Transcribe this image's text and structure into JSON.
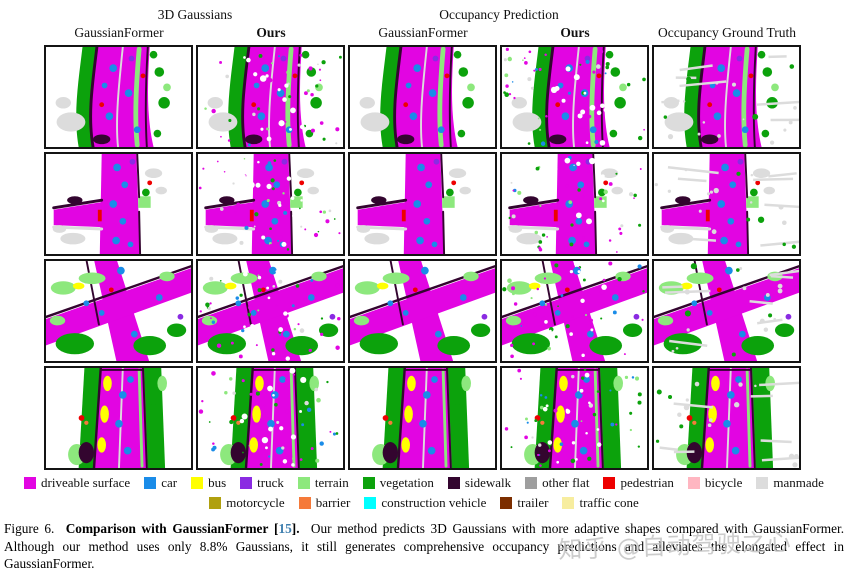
{
  "figure": {
    "group_headers": [
      {
        "label": "3D Gaussians"
      },
      {
        "label": "Occupancy Prediction"
      }
    ],
    "column_headers": [
      {
        "label": "GaussianFormer",
        "bold": false
      },
      {
        "label": "Ours",
        "bold": true
      },
      {
        "label": "GaussianFormer",
        "bold": false
      },
      {
        "label": "Ours",
        "bold": true
      },
      {
        "label": "Occupancy Ground Truth",
        "bold": false
      }
    ],
    "grid": {
      "rows": 4,
      "cols": 5,
      "row_scenes": [
        "curved-road",
        "cross-junction",
        "diagonal-junction",
        "tree-lined-road"
      ],
      "col_variants": [
        "solid",
        "speckled",
        "solid",
        "speckled",
        "ground-truth"
      ]
    }
  },
  "legend": {
    "rows": [
      [
        {
          "key": "drive",
          "label": "driveable surface",
          "color": "#E205E2"
        },
        {
          "key": "car",
          "label": "car",
          "color": "#1A8CE8"
        },
        {
          "key": "bus",
          "label": "bus",
          "color": "#FFFF00"
        },
        {
          "key": "truck",
          "label": "truck",
          "color": "#8A2BE2"
        },
        {
          "key": "terrain",
          "label": "terrain",
          "color": "#8DE87D"
        },
        {
          "key": "veg",
          "label": "vegetation",
          "color": "#0CA20C"
        },
        {
          "key": "sidewalk",
          "label": "sidewalk",
          "color": "#33052F"
        },
        {
          "key": "flat",
          "label": "other flat",
          "color": "#9E9E9E"
        },
        {
          "key": "ped",
          "label": "pedestrian",
          "color": "#EE0000"
        },
        {
          "key": "bicycle",
          "label": "bicycle",
          "color": "#FFB6C1"
        },
        {
          "key": "man",
          "label": "manmade",
          "color": "#DCDCDC"
        }
      ],
      [
        {
          "key": "moto",
          "label": "motorcycle",
          "color": "#B0A00F"
        },
        {
          "key": "barrier",
          "label": "barrier",
          "color": "#F57A3A"
        },
        {
          "key": "constr",
          "label": "construction vehicle",
          "color": "#00FFFF"
        },
        {
          "key": "trailer",
          "label": "trailer",
          "color": "#7C2E00"
        },
        {
          "key": "cone",
          "label": "traffic cone",
          "color": "#F7ED9F"
        }
      ]
    ]
  },
  "caption": {
    "prefix": "Figure 6.",
    "bold_part": "Comparison with GaussianFormer",
    "citation_open": "[",
    "citation_number": "15",
    "citation_close": "].",
    "body": "Our method predicts 3D Gaussians with more adaptive shapes compared with GaussianFormer. Although our method uses only 8.8% Gaussians, it still generates comprehensive occupancy predictions and alleviates the elongated effect in GaussianFormer.",
    "citation_color": "#3D7EAE"
  },
  "watermark": {
    "text": "知乎 @自动驾驶之心",
    "color": "#C4C4C4"
  }
}
